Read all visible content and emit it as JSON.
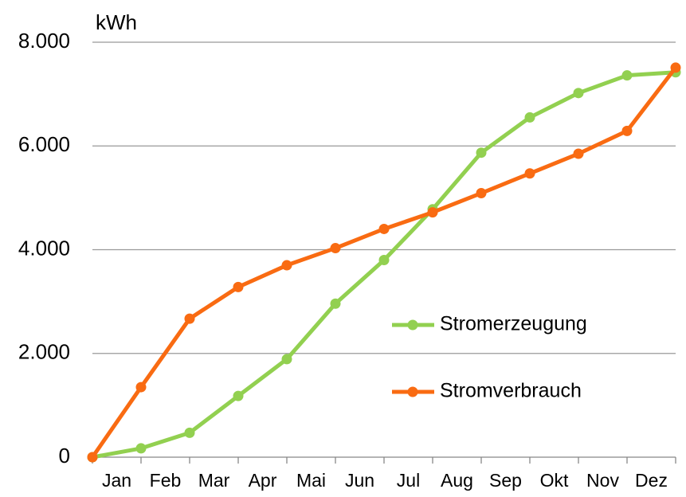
{
  "chart_data": {
    "type": "line",
    "y_label": "kWh",
    "categories": [
      null,
      "Jan",
      "Feb",
      "Mar",
      "Apr",
      "Mai",
      "Jun",
      "Jul",
      "Aug",
      "Sep",
      "Okt",
      "Nov",
      "Dez"
    ],
    "series": [
      {
        "name": "Stromerzeugung",
        "color": "#92d050",
        "values": [
          0,
          170,
          470,
          1180,
          1890,
          2960,
          3800,
          4780,
          5870,
          6550,
          7020,
          7360,
          7420
        ]
      },
      {
        "name": "Stromverbrauch",
        "color": "#f96b12",
        "values": [
          0,
          1350,
          2670,
          3280,
          3700,
          4030,
          4400,
          4720,
          5090,
          5470,
          5850,
          6290,
          7510
        ]
      }
    ],
    "ylim": [
      0,
      8000
    ],
    "yticks": [
      0,
      {
        "value": 2000,
        "label": "2.000"
      },
      {
        "value": 4000,
        "label": "4.000"
      },
      {
        "value": 6000,
        "label": "6.000"
      },
      {
        "value": 8000,
        "label": "8.000"
      }
    ],
    "grid": true
  }
}
